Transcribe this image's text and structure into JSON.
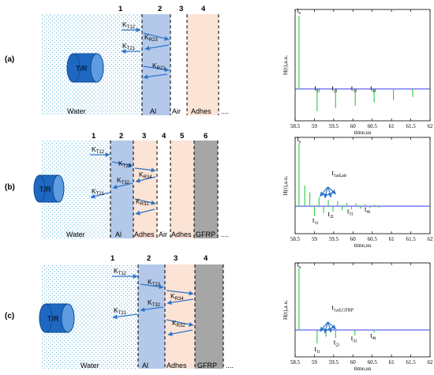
{
  "panels": [
    {
      "label": "(a)",
      "transducer": "T/R",
      "layer_numbers": [
        "1",
        "2",
        "3",
        "4"
      ],
      "materials": [
        "Water",
        "Al",
        "Air",
        "Adhes",
        "...."
      ],
      "arrows": [
        {
          "label": "K",
          "sub": "T12"
        },
        {
          "label": "K",
          "sub": "R23"
        },
        {
          "label": "K",
          "sub": "T21"
        },
        {
          "label": "K",
          "sub": "R21"
        }
      ],
      "chart": {
        "ylabel": "H(t),a.u.",
        "xlabel": "time,us",
        "xticks": [
          "58.5",
          "59",
          "59.5",
          "60",
          "60.5",
          "61",
          "61.5",
          "62"
        ],
        "labels": [
          {
            "main": "t",
            "sub": "s"
          },
          {
            "main": "t",
            "sub": "1i"
          },
          {
            "main": "t",
            "sub": "2i"
          },
          {
            "main": "t",
            "sub": "3i"
          },
          {
            "main": "t",
            "sub": "4i"
          }
        ]
      }
    },
    {
      "label": "(b)",
      "transducer": "T/R",
      "layer_numbers": [
        "1",
        "2",
        "3",
        "4",
        "5",
        "6"
      ],
      "materials": [
        "Water",
        "Al",
        "Adhes",
        "Air",
        "Adhes",
        "GFRP",
        "...."
      ],
      "arrows": [
        {
          "label": "K",
          "sub": "T12"
        },
        {
          "label": "K",
          "sub": "T23"
        },
        {
          "label": "K",
          "sub": "R34"
        },
        {
          "label": "K",
          "sub": "T32"
        },
        {
          "label": "K",
          "sub": "T21"
        },
        {
          "label": "K",
          "sub": "R32"
        }
      ],
      "chart": {
        "ylabel": "H(t),a.u.",
        "xlabel": "time,us",
        "xticks": [
          "58.5",
          "59",
          "59.5",
          "60",
          "60.5",
          "61",
          "61.5",
          "62"
        ],
        "labels": [
          {
            "main": "t",
            "sub": "s"
          },
          {
            "main": "t",
            "sub": "1ad,air"
          },
          {
            "main": "t",
            "sub": "1i"
          },
          {
            "main": "t",
            "sub": "2i"
          },
          {
            "main": "t",
            "sub": "3i"
          },
          {
            "main": "t",
            "sub": "4i"
          }
        ]
      }
    },
    {
      "label": "(c)",
      "transducer": "T/R",
      "layer_numbers": [
        "1",
        "2",
        "3",
        "4"
      ],
      "materials": [
        "Water",
        "Al",
        "Adhes",
        "GFRP",
        "...."
      ],
      "arrows": [
        {
          "label": "K",
          "sub": "T12"
        },
        {
          "label": "K",
          "sub": "T23"
        },
        {
          "label": "K",
          "sub": "R34"
        },
        {
          "label": "K",
          "sub": "T32"
        },
        {
          "label": "K",
          "sub": "T21"
        },
        {
          "label": "K",
          "sub": "R32"
        }
      ],
      "chart": {
        "ylabel": "H(t),a.u.",
        "xlabel": "time,us",
        "xticks": [
          "58.5",
          "59",
          "59.5",
          "60",
          "60.5",
          "61",
          "61.5",
          "62"
        ],
        "labels": [
          {
            "main": "t",
            "sub": "s"
          },
          {
            "main": "t",
            "sub": "1ad,GFRP"
          },
          {
            "main": "t",
            "sub": "1i"
          },
          {
            "main": "t",
            "sub": "2i"
          },
          {
            "main": "t",
            "sub": "3i"
          },
          {
            "main": "t",
            "sub": "4i"
          }
        ]
      }
    }
  ],
  "chart_data": [
    {
      "type": "line",
      "xlim": [
        58.5,
        62
      ],
      "ylim": [
        -0.4,
        1.0
      ],
      "grid": false,
      "series": [
        {
          "x": [
            58.6,
            59.07,
            59.55,
            60.06,
            60.55,
            61.05,
            61.55
          ],
          "y": [
            0.92,
            -0.28,
            -0.24,
            -0.21,
            -0.17,
            -0.14,
            -0.1
          ]
        }
      ]
    },
    {
      "type": "line",
      "xlim": [
        58.5,
        62
      ],
      "ylim": [
        -0.4,
        1.0
      ],
      "grid": false,
      "series": [
        {
          "x": [
            58.6,
            58.75,
            58.88,
            59.0,
            59.12,
            59.24,
            59.36,
            59.48,
            59.6,
            59.72,
            59.84,
            59.96,
            60.08,
            60.2,
            60.32,
            60.44,
            60.56,
            60.68,
            60.8
          ],
          "y": [
            0.92,
            0.3,
            0.2,
            -0.14,
            0.13,
            -0.1,
            0.09,
            -0.08,
            0.07,
            -0.06,
            0.05,
            -0.05,
            0.04,
            -0.04,
            0.03,
            -0.03,
            0.02,
            -0.02,
            0.01
          ]
        }
      ]
    },
    {
      "type": "line",
      "xlim": [
        58.5,
        62
      ],
      "ylim": [
        -0.4,
        1.0
      ],
      "grid": false,
      "series": [
        {
          "x": [
            58.6,
            59.07,
            59.3,
            59.55,
            60.05,
            60.55
          ],
          "y": [
            0.92,
            -0.2,
            -0.1,
            -0.12,
            -0.08,
            -0.04
          ]
        }
      ]
    }
  ]
}
